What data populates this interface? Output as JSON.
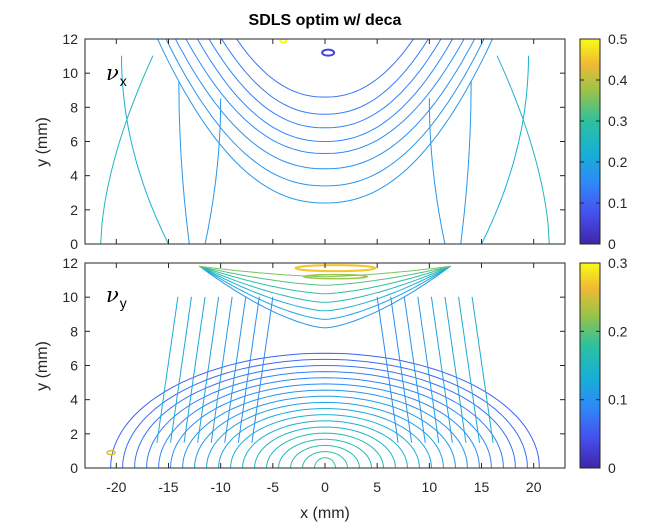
{
  "chart_data": {
    "title": "SDLS optim w/ deca",
    "xlabel": "x (mm)",
    "xlim": [
      -23,
      23
    ],
    "xticks": [
      "-20",
      "-15",
      "-10",
      "-5",
      "0",
      "5",
      "10",
      "15",
      "20"
    ],
    "panels": [
      {
        "type": "contour",
        "symbol": "ν",
        "subscript": "x",
        "ylabel": "y (mm)",
        "ylim": [
          0,
          12
        ],
        "yticks": [
          "0",
          "2",
          "4",
          "6",
          "8",
          "10",
          "12"
        ],
        "colorbar_limits": [
          0,
          0.5
        ],
        "colorbar_ticks": [
          "0",
          "0.1",
          "0.2",
          "0.3",
          "0.4",
          "0.5"
        ]
      },
      {
        "type": "contour",
        "symbol": "ν",
        "subscript": "y",
        "ylabel": "y (mm)",
        "ylim": [
          0,
          12
        ],
        "yticks": [
          "0",
          "2",
          "4",
          "6",
          "8",
          "10",
          "12"
        ],
        "colorbar_limits": [
          0,
          0.3
        ],
        "colorbar_ticks": [
          "0",
          "0.1",
          "0.2",
          "0.3"
        ]
      }
    ]
  }
}
